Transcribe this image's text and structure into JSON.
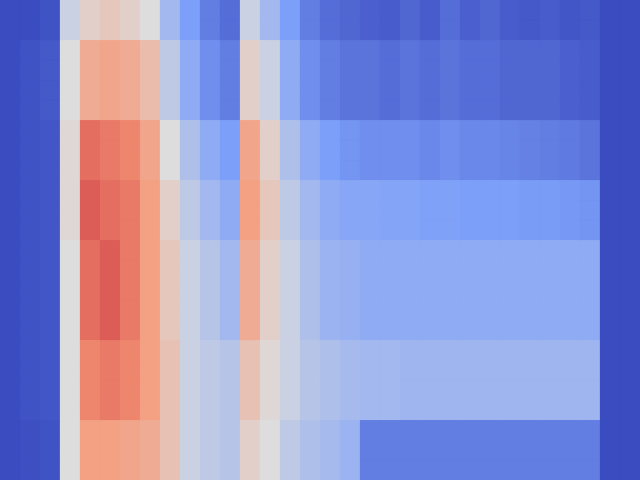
{
  "chart_data": {
    "type": "heatmap",
    "tick_labels": false,
    "grid": false,
    "color_range": [
      0,
      1
    ],
    "cells": [
      [
        0,
        0,
        0.02,
        0.45,
        0.55,
        0.58,
        0.55,
        0.5,
        0.35,
        0.25,
        0.15,
        0.1,
        0.45,
        0.35,
        0.25,
        0.15,
        0.1,
        0.08,
        0.06,
        0.05,
        0.08,
        0.05,
        0.1,
        0.06,
        0.08,
        0.05,
        0.04,
        0.05,
        0.03,
        0.04,
        0,
        0
      ],
      [
        0,
        0,
        0.02,
        0.45,
        0.55,
        0.58,
        0.55,
        0.5,
        0.35,
        0.25,
        0.15,
        0.1,
        0.45,
        0.35,
        0.25,
        0.15,
        0.1,
        0.08,
        0.06,
        0.05,
        0.08,
        0.05,
        0.1,
        0.06,
        0.08,
        0.05,
        0.04,
        0.05,
        0.03,
        0.04,
        0,
        0
      ],
      [
        0,
        0.02,
        0.04,
        0.5,
        0.68,
        0.7,
        0.68,
        0.62,
        0.42,
        0.3,
        0.2,
        0.15,
        0.55,
        0.45,
        0.3,
        0.2,
        0.15,
        0.12,
        0.12,
        0.1,
        0.12,
        0.1,
        0.12,
        0.1,
        0.1,
        0.08,
        0.08,
        0.08,
        0.06,
        0.05,
        0,
        0
      ],
      [
        0,
        0.02,
        0.04,
        0.5,
        0.68,
        0.7,
        0.68,
        0.62,
        0.42,
        0.3,
        0.2,
        0.15,
        0.55,
        0.45,
        0.3,
        0.2,
        0.15,
        0.12,
        0.12,
        0.1,
        0.12,
        0.1,
        0.12,
        0.1,
        0.1,
        0.08,
        0.08,
        0.08,
        0.06,
        0.05,
        0,
        0
      ],
      [
        0,
        0.02,
        0.04,
        0.5,
        0.68,
        0.7,
        0.68,
        0.62,
        0.42,
        0.3,
        0.2,
        0.15,
        0.55,
        0.45,
        0.3,
        0.2,
        0.15,
        0.12,
        0.12,
        0.1,
        0.12,
        0.1,
        0.12,
        0.1,
        0.1,
        0.08,
        0.08,
        0.08,
        0.06,
        0.05,
        0,
        0
      ],
      [
        0,
        0.02,
        0.04,
        0.5,
        0.68,
        0.7,
        0.68,
        0.62,
        0.42,
        0.3,
        0.2,
        0.15,
        0.55,
        0.45,
        0.3,
        0.2,
        0.15,
        0.12,
        0.12,
        0.1,
        0.12,
        0.1,
        0.12,
        0.1,
        0.1,
        0.08,
        0.08,
        0.08,
        0.06,
        0.05,
        0,
        0
      ],
      [
        0,
        0.02,
        0.03,
        0.52,
        0.82,
        0.8,
        0.78,
        0.7,
        0.5,
        0.38,
        0.3,
        0.25,
        0.7,
        0.55,
        0.38,
        0.3,
        0.25,
        0.22,
        0.2,
        0.2,
        0.2,
        0.18,
        0.2,
        0.18,
        0.18,
        0.17,
        0.16,
        0.15,
        0.14,
        0.12,
        0,
        0
      ],
      [
        0,
        0.02,
        0.03,
        0.52,
        0.82,
        0.8,
        0.78,
        0.7,
        0.5,
        0.38,
        0.3,
        0.25,
        0.7,
        0.55,
        0.38,
        0.3,
        0.25,
        0.22,
        0.2,
        0.2,
        0.2,
        0.18,
        0.2,
        0.18,
        0.18,
        0.17,
        0.16,
        0.15,
        0.14,
        0.12,
        0,
        0
      ],
      [
        0,
        0.02,
        0.03,
        0.52,
        0.82,
        0.8,
        0.78,
        0.7,
        0.5,
        0.38,
        0.3,
        0.25,
        0.7,
        0.55,
        0.38,
        0.3,
        0.25,
        0.22,
        0.2,
        0.2,
        0.2,
        0.18,
        0.2,
        0.18,
        0.18,
        0.17,
        0.16,
        0.15,
        0.14,
        0.12,
        0,
        0
      ],
      [
        0,
        0.02,
        0.03,
        0.52,
        0.85,
        0.82,
        0.8,
        0.72,
        0.55,
        0.42,
        0.35,
        0.3,
        0.72,
        0.58,
        0.42,
        0.35,
        0.3,
        0.28,
        0.28,
        0.27,
        0.27,
        0.26,
        0.26,
        0.25,
        0.25,
        0.25,
        0.24,
        0.24,
        0.23,
        0.22,
        0,
        0
      ],
      [
        0,
        0.02,
        0.03,
        0.52,
        0.85,
        0.82,
        0.8,
        0.72,
        0.55,
        0.42,
        0.35,
        0.3,
        0.72,
        0.58,
        0.42,
        0.35,
        0.3,
        0.28,
        0.28,
        0.27,
        0.27,
        0.26,
        0.26,
        0.25,
        0.25,
        0.25,
        0.24,
        0.24,
        0.23,
        0.22,
        0,
        0
      ],
      [
        0,
        0.02,
        0.03,
        0.52,
        0.85,
        0.82,
        0.8,
        0.72,
        0.55,
        0.42,
        0.35,
        0.3,
        0.72,
        0.58,
        0.42,
        0.35,
        0.3,
        0.28,
        0.28,
        0.27,
        0.27,
        0.26,
        0.26,
        0.25,
        0.25,
        0.25,
        0.24,
        0.24,
        0.23,
        0.22,
        0,
        0
      ],
      [
        0,
        0.02,
        0.03,
        0.5,
        0.82,
        0.85,
        0.8,
        0.72,
        0.58,
        0.45,
        0.4,
        0.35,
        0.68,
        0.55,
        0.45,
        0.38,
        0.33,
        0.32,
        0.3,
        0.3,
        0.3,
        0.3,
        0.3,
        0.3,
        0.3,
        0.3,
        0.3,
        0.3,
        0.3,
        0.3,
        0,
        0
      ],
      [
        0,
        0.02,
        0.03,
        0.5,
        0.82,
        0.85,
        0.8,
        0.72,
        0.58,
        0.45,
        0.4,
        0.35,
        0.68,
        0.55,
        0.45,
        0.38,
        0.33,
        0.32,
        0.3,
        0.3,
        0.3,
        0.3,
        0.3,
        0.3,
        0.3,
        0.3,
        0.3,
        0.3,
        0.3,
        0.3,
        0,
        0
      ],
      [
        0,
        0.02,
        0.03,
        0.5,
        0.82,
        0.85,
        0.8,
        0.72,
        0.58,
        0.45,
        0.4,
        0.35,
        0.68,
        0.55,
        0.45,
        0.38,
        0.33,
        0.32,
        0.3,
        0.3,
        0.3,
        0.3,
        0.3,
        0.3,
        0.3,
        0.3,
        0.3,
        0.3,
        0.3,
        0.3,
        0,
        0
      ],
      [
        0,
        0.02,
        0.03,
        0.5,
        0.82,
        0.85,
        0.8,
        0.72,
        0.58,
        0.45,
        0.4,
        0.35,
        0.68,
        0.55,
        0.45,
        0.38,
        0.33,
        0.32,
        0.3,
        0.3,
        0.3,
        0.3,
        0.3,
        0.3,
        0.3,
        0.3,
        0.3,
        0.3,
        0.3,
        0.3,
        0,
        0
      ],
      [
        0,
        0.02,
        0.03,
        0.5,
        0.82,
        0.85,
        0.8,
        0.72,
        0.58,
        0.45,
        0.4,
        0.35,
        0.68,
        0.55,
        0.45,
        0.38,
        0.33,
        0.32,
        0.3,
        0.3,
        0.3,
        0.3,
        0.3,
        0.3,
        0.3,
        0.3,
        0.3,
        0.3,
        0.3,
        0.3,
        0,
        0
      ],
      [
        0,
        0.02,
        0.03,
        0.5,
        0.78,
        0.8,
        0.78,
        0.72,
        0.6,
        0.45,
        0.42,
        0.4,
        0.6,
        0.52,
        0.45,
        0.4,
        0.38,
        0.36,
        0.35,
        0.35,
        0.34,
        0.34,
        0.34,
        0.34,
        0.34,
        0.34,
        0.34,
        0.34,
        0.34,
        0.34,
        0,
        0
      ],
      [
        0,
        0.02,
        0.03,
        0.5,
        0.78,
        0.8,
        0.78,
        0.72,
        0.6,
        0.45,
        0.42,
        0.4,
        0.6,
        0.52,
        0.45,
        0.4,
        0.38,
        0.36,
        0.35,
        0.35,
        0.34,
        0.34,
        0.34,
        0.34,
        0.34,
        0.34,
        0.34,
        0.34,
        0.34,
        0.34,
        0,
        0
      ],
      [
        0,
        0.02,
        0.03,
        0.5,
        0.78,
        0.8,
        0.78,
        0.72,
        0.6,
        0.45,
        0.42,
        0.4,
        0.6,
        0.52,
        0.45,
        0.4,
        0.38,
        0.36,
        0.35,
        0.35,
        0.34,
        0.34,
        0.34,
        0.34,
        0.34,
        0.34,
        0.34,
        0.34,
        0.34,
        0.34,
        0,
        0
      ],
      [
        0,
        0.02,
        0.03,
        0.5,
        0.78,
        0.8,
        0.78,
        0.72,
        0.6,
        0.45,
        0.42,
        0.4,
        0.6,
        0.52,
        0.45,
        0.4,
        0.38,
        0.36,
        0.35,
        0.35,
        0.34,
        0.34,
        0.34,
        0.34,
        0.34,
        0.34,
        0.34,
        0.34,
        0.34,
        0.34,
        0,
        0
      ],
      [
        0,
        0.01,
        0.02,
        0.5,
        0.72,
        0.72,
        0.7,
        0.68,
        0.6,
        0.45,
        0.42,
        0.4,
        0.55,
        0.5,
        0.42,
        0.38,
        0.36,
        0.33,
        0.15,
        0.15,
        0.15,
        0.15,
        0.15,
        0.15,
        0.15,
        0.15,
        0.15,
        0.15,
        0.15,
        0.15,
        0,
        0
      ],
      [
        0,
        0.01,
        0.02,
        0.5,
        0.72,
        0.72,
        0.7,
        0.68,
        0.6,
        0.45,
        0.42,
        0.4,
        0.55,
        0.5,
        0.42,
        0.38,
        0.36,
        0.33,
        0.15,
        0.15,
        0.15,
        0.15,
        0.15,
        0.15,
        0.15,
        0.15,
        0.15,
        0.15,
        0.15,
        0.15,
        0,
        0
      ],
      [
        0,
        0.01,
        0.02,
        0.5,
        0.72,
        0.72,
        0.7,
        0.68,
        0.6,
        0.45,
        0.42,
        0.4,
        0.55,
        0.5,
        0.42,
        0.38,
        0.36,
        0.33,
        0.15,
        0.15,
        0.15,
        0.15,
        0.15,
        0.15,
        0.15,
        0.15,
        0.15,
        0.15,
        0.15,
        0.15,
        0,
        0
      ]
    ]
  }
}
